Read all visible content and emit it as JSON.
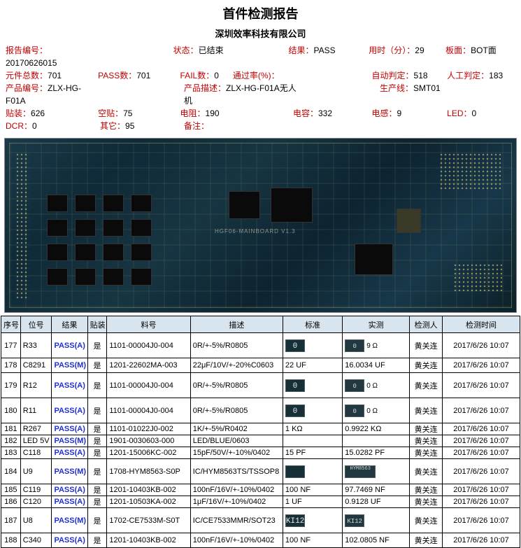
{
  "header": {
    "title": "首件检测报告",
    "subtitle": "深圳效率科技有限公司"
  },
  "meta": {
    "r1": [
      {
        "label": "报告编号：",
        "value": "20170626015"
      },
      {
        "label": "状态：",
        "value": "已结束"
      },
      {
        "label": "结果：",
        "value": "PASS"
      },
      {
        "label": "用时（分）：",
        "value": "29"
      },
      {
        "label": "板面：",
        "value": "BOT面"
      }
    ],
    "r2": [
      {
        "label": "元件总数：",
        "value": "701"
      },
      {
        "label": "PASS数：",
        "value": "701"
      },
      {
        "label": "FAIL数：",
        "value": "0"
      },
      {
        "label": "通过率(%)：",
        "value": ""
      },
      {
        "label": "自动判定：",
        "value": "518"
      },
      {
        "label": "人工判定：",
        "value": "183"
      }
    ],
    "r3": [
      {
        "label": "产品编号：",
        "value": "ZLX-HG-F01A"
      },
      {
        "label": "产品描述：",
        "value": "ZLX-HG-F01A无人机"
      },
      {
        "label": "生产线：",
        "value": "SMT01"
      }
    ],
    "r4": [
      {
        "label": "贴装：",
        "value": "626"
      },
      {
        "label": "空贴：",
        "value": "75"
      },
      {
        "label": "电阻：",
        "value": "190"
      },
      {
        "label": "电容：",
        "value": "332"
      },
      {
        "label": "电感：",
        "value": "9"
      },
      {
        "label": "LED：",
        "value": "0"
      }
    ],
    "r5": [
      {
        "label": "DCR：",
        "value": "0"
      },
      {
        "label": "其它：",
        "value": "95"
      },
      {
        "label": "备注：",
        "value": ""
      }
    ]
  },
  "board_text": "HGF06-MAINBOARD V1.3",
  "columns": {
    "seq": "序号",
    "pos": "位号",
    "res": "结果",
    "mnt": "贴装",
    "part": "料号",
    "desc": "描述",
    "std": "标准",
    "act": "实测",
    "insp": "检测人",
    "time": "检测时间"
  },
  "inspector": "黄关连",
  "time": "2017/6/26 10:07",
  "rows": [
    {
      "tall": true,
      "seq": "177",
      "pos": "R33",
      "res": "PASS(A)",
      "mnt": "是",
      "part": "1101-00004J0-004",
      "desc": "0R/+-5%/R0805",
      "stdimg": "0",
      "std_txt": "",
      "actimg": "0",
      "act_txt": "9 Ω"
    },
    {
      "tall": false,
      "seq": "178",
      "pos": "C8291",
      "res": "PASS(M)",
      "mnt": "是",
      "part": "1201-22602MA-003",
      "desc": "22μF/10V/+-20%C0603",
      "std_txt": "22 UF",
      "act_txt": "16.0034 UF"
    },
    {
      "tall": true,
      "seq": "179",
      "pos": "R12",
      "res": "PASS(A)",
      "mnt": "是",
      "part": "1101-00004J0-004",
      "desc": "0R/+-5%/R0805",
      "stdimg": "0",
      "std_txt": "",
      "actimg": "0",
      "act_txt": "0 Ω"
    },
    {
      "tall": true,
      "seq": "180",
      "pos": "R11",
      "res": "PASS(A)",
      "mnt": "是",
      "part": "1101-00004J0-004",
      "desc": "0R/+-5%/R0805",
      "stdimg": "0",
      "std_txt": "",
      "actimg": "0",
      "act_txt": "0 Ω"
    },
    {
      "tall": false,
      "slim": true,
      "seq": "181",
      "pos": "R267",
      "res": "PASS(A)",
      "mnt": "是",
      "part": "1101-01022J0-002",
      "desc": "1K/+-5%/R0402",
      "std_txt": "1 KΩ",
      "act_txt": "0.9922 KΩ"
    },
    {
      "tall": false,
      "slim": true,
      "seq": "182",
      "pos": "LED 5V",
      "res": "PASS(M)",
      "mnt": "是",
      "part": "1901-0030603-000",
      "desc": "LED/BLUE/0603",
      "std_txt": "",
      "act_txt": ""
    },
    {
      "tall": false,
      "slim": true,
      "seq": "183",
      "pos": "C118",
      "res": "PASS(A)",
      "mnt": "是",
      "part": "1201-15006KC-002",
      "desc": "15pF/50V/+-10%/0402",
      "std_txt": "15 PF",
      "act_txt": "15.0282 PF"
    },
    {
      "tall": true,
      "seq": "184",
      "pos": "U9",
      "res": "PASS(M)",
      "mnt": "是",
      "part": "1708-HYM8563-S0P",
      "desc": "IC/HYM8563TS/TSSOP8",
      "stdimg": "",
      "std_txt": "",
      "actchip": true,
      "act_txt": ""
    },
    {
      "tall": false,
      "slim": true,
      "seq": "185",
      "pos": "C119",
      "res": "PASS(A)",
      "mnt": "是",
      "part": "1201-10403KB-002",
      "desc": "100nF/16V/+-10%/0402",
      "std_txt": "100 NF",
      "act_txt": "97.7469 NF"
    },
    {
      "tall": false,
      "slim": true,
      "seq": "186",
      "pos": "C120",
      "res": "PASS(A)",
      "mnt": "是",
      "part": "1201-10503KA-002",
      "desc": "1μF/16V/+-10%/0402",
      "std_txt": "1 UF",
      "act_txt": "0.9128 UF"
    },
    {
      "tall": true,
      "seq": "187",
      "pos": "U8",
      "res": "PASS(M)",
      "mnt": "是",
      "part": "1702-CE7533M-S0T",
      "desc": "IC/CE7533MMR/SOT23",
      "stdimg": "KI12",
      "std_txt": "",
      "actimg": "KI12",
      "act_txt": ""
    },
    {
      "tall": false,
      "seq": "188",
      "pos": "C340",
      "res": "PASS(A)",
      "mnt": "是",
      "part": "1201-10403KB-002",
      "desc": "100nF/16V/+-10%/0402",
      "std_txt": "100 NF",
      "act_txt": "102.0805 NF"
    }
  ]
}
